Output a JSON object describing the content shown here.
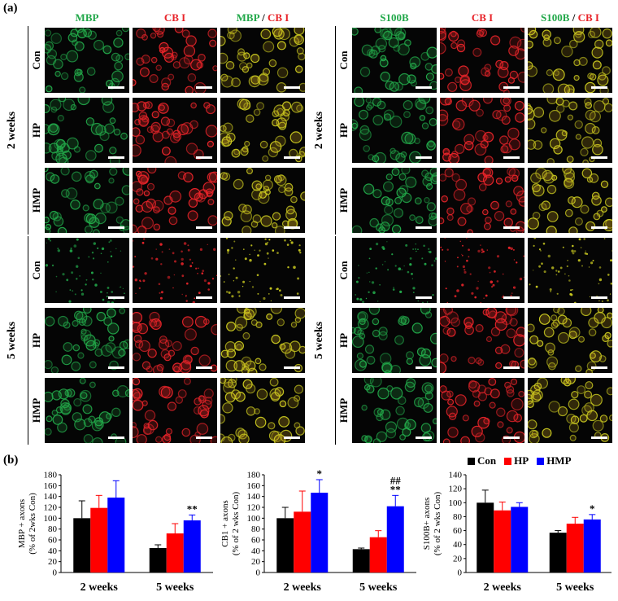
{
  "panel_a_label": "(a)",
  "panel_b_label": "(b)",
  "left_headers": [
    {
      "parts": [
        {
          "t": "MBP",
          "c": "green"
        }
      ]
    },
    {
      "parts": [
        {
          "t": "CB I",
          "c": "red"
        }
      ]
    },
    {
      "parts": [
        {
          "t": "MBP",
          "c": "green"
        },
        {
          "t": " / ",
          "c": "dark"
        },
        {
          "t": "CB I",
          "c": "red"
        }
      ]
    }
  ],
  "right_headers": [
    {
      "parts": [
        {
          "t": "S100B",
          "c": "green"
        }
      ]
    },
    {
      "parts": [
        {
          "t": "CB I",
          "c": "red"
        }
      ]
    },
    {
      "parts": [
        {
          "t": "S100B",
          "c": "green"
        },
        {
          "t": " / ",
          "c": "dark"
        },
        {
          "t": "CB I",
          "c": "red"
        }
      ]
    }
  ],
  "groups": [
    "2 weeks",
    "5 weeks"
  ],
  "rows": [
    "Con",
    "HP",
    "HMP"
  ],
  "colors": {
    "con": "#000000",
    "hp": "#ff0000",
    "hmp": "#0000ff",
    "green": "#22a84a",
    "red": "#e8242a"
  },
  "legend": [
    {
      "name": "Con",
      "color": "#000000"
    },
    {
      "name": "HP",
      "color": "#ff0000"
    },
    {
      "name": "HMP",
      "color": "#0000ff"
    }
  ],
  "chart_data": [
    {
      "type": "bar",
      "categories": [
        "2 weeks",
        "5 weeks"
      ],
      "ylabel_lines": [
        "MBP + axons",
        "(% of 2wks Con)"
      ],
      "ylim": [
        0,
        180
      ],
      "yticks": [
        0,
        20,
        40,
        60,
        80,
        100,
        120,
        140,
        160,
        180
      ],
      "series": [
        {
          "name": "Con",
          "values": [
            100,
            45
          ],
          "errors": [
            32,
            6
          ]
        },
        {
          "name": "HP",
          "values": [
            119,
            72
          ],
          "errors": [
            23,
            18
          ]
        },
        {
          "name": "HMP",
          "values": [
            138,
            96
          ],
          "errors": [
            31,
            10
          ]
        }
      ],
      "annotations": [
        {
          "category": 1,
          "series": 2,
          "lines": [
            "**"
          ]
        }
      ]
    },
    {
      "type": "bar",
      "categories": [
        "2 weeks",
        "5 weeks"
      ],
      "ylabel_lines": [
        "CB1 + axons",
        "(% of 2 wks Con)"
      ],
      "ylim": [
        0,
        180
      ],
      "yticks": [
        0,
        20,
        40,
        60,
        80,
        100,
        120,
        140,
        160,
        180
      ],
      "series": [
        {
          "name": "Con",
          "values": [
            100,
            43
          ],
          "errors": [
            20,
            2
          ]
        },
        {
          "name": "HP",
          "values": [
            112,
            65
          ],
          "errors": [
            38,
            12
          ]
        },
        {
          "name": "HMP",
          "values": [
            147,
            122
          ],
          "errors": [
            24,
            20
          ]
        }
      ],
      "annotations": [
        {
          "category": 0,
          "series": 2,
          "lines": [
            "*"
          ]
        },
        {
          "category": 1,
          "series": 2,
          "lines": [
            "##",
            "**"
          ]
        }
      ]
    },
    {
      "type": "bar",
      "categories": [
        "2 weeks",
        "5 weeks"
      ],
      "ylabel_lines": [
        "S100B+ axons",
        "(% of 2 wks Con)"
      ],
      "ylim": [
        0,
        140
      ],
      "yticks": [
        0,
        20,
        40,
        60,
        80,
        100,
        120,
        140
      ],
      "series": [
        {
          "name": "Con",
          "values": [
            100,
            57
          ],
          "errors": [
            18,
            3
          ]
        },
        {
          "name": "HP",
          "values": [
            89,
            70
          ],
          "errors": [
            12,
            9
          ]
        },
        {
          "name": "HMP",
          "values": [
            94,
            76
          ],
          "errors": [
            6,
            7
          ]
        }
      ],
      "annotations": [
        {
          "category": 1,
          "series": 2,
          "lines": [
            "*"
          ]
        }
      ]
    }
  ]
}
